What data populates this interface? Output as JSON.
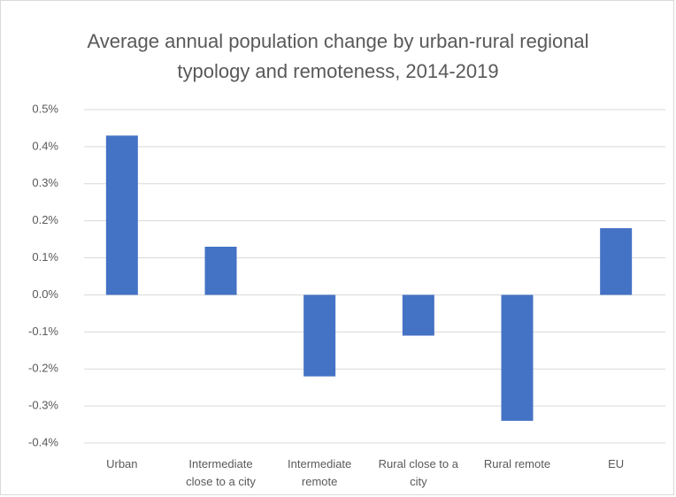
{
  "chart_data": {
    "type": "bar",
    "title": "Average annual population change by urban-rural regional typology and remoteness, 2014-2019",
    "categories": [
      "Urban",
      "Intermediate close to a city",
      "Intermediate remote",
      "Rural close to a city",
      "Rural remote",
      "EU"
    ],
    "values": [
      0.43,
      0.13,
      -0.22,
      -0.11,
      -0.34,
      0.18
    ],
    "color": "#4472c4",
    "ylim": [
      -0.4,
      0.5
    ],
    "yticks": [
      {
        "value": -0.4,
        "label": "-0.4%"
      },
      {
        "value": -0.3,
        "label": "-0.3%"
      },
      {
        "value": -0.2,
        "label": "-0.2%"
      },
      {
        "value": -0.1,
        "label": "-0.1%"
      },
      {
        "value": 0,
        "label": "0.0%"
      },
      {
        "value": 0.1,
        "label": "0.1%"
      },
      {
        "value": 0.2,
        "label": "0.2%"
      },
      {
        "value": 0.3,
        "label": "0.3%"
      },
      {
        "value": 0.4,
        "label": "0.4%"
      },
      {
        "value": 0.5,
        "label": "0.5%"
      }
    ],
    "grid": true
  }
}
